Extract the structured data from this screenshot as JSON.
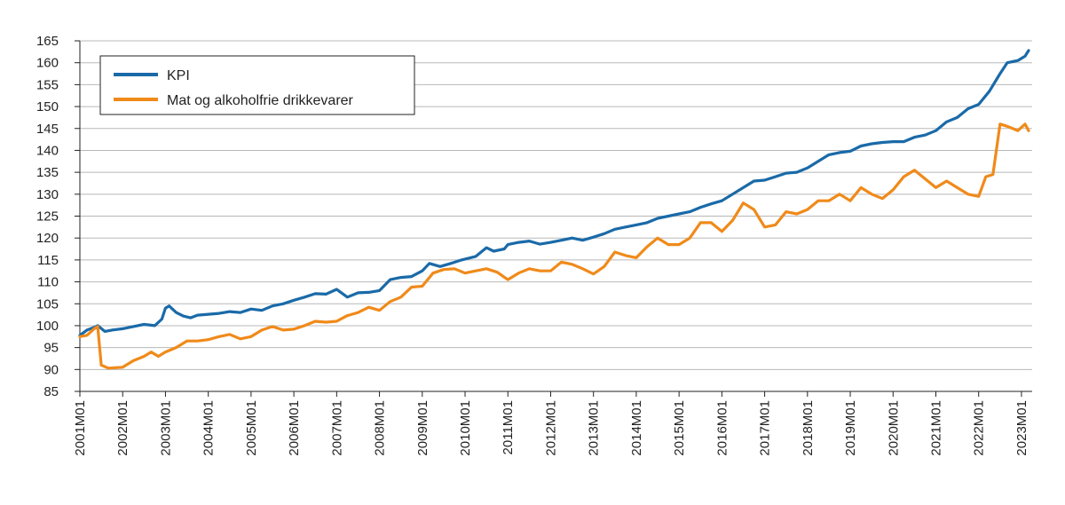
{
  "chart_data": {
    "type": "line",
    "title": "",
    "xlabel": "",
    "ylabel": "",
    "ylim": [
      85,
      165
    ],
    "y_ticks": [
      85,
      90,
      95,
      100,
      105,
      110,
      115,
      120,
      125,
      130,
      135,
      140,
      145,
      150,
      155,
      160,
      165
    ],
    "x_tick_labels": [
      "2001M01",
      "2002M01",
      "2003M01",
      "2004M01",
      "2005M01",
      "2006M01",
      "2007M01",
      "2008M01",
      "2009M01",
      "2010M01",
      "2011M01",
      "2012M01",
      "2013M01",
      "2014M01",
      "2015M01",
      "2016M01",
      "2017M01",
      "2018M01",
      "2019M01",
      "2020M01",
      "2021M01",
      "2022M01",
      "2023M01"
    ],
    "grid": "horizontal",
    "legend_position": "top-left",
    "series": [
      {
        "name": "KPI",
        "color": "#1a6aa8",
        "points": [
          [
            "2001M01",
            97.8
          ],
          [
            "2001M03",
            99.0
          ],
          [
            "2001M05",
            99.6
          ],
          [
            "2001M06",
            100.0
          ],
          [
            "2001M08",
            98.7
          ],
          [
            "2001M10",
            99.0
          ],
          [
            "2002M01",
            99.3
          ],
          [
            "2002M04",
            99.8
          ],
          [
            "2002M07",
            100.3
          ],
          [
            "2002M10",
            100.0
          ],
          [
            "2002M12",
            101.5
          ],
          [
            "2003M01",
            104.0
          ],
          [
            "2003M02",
            104.5
          ],
          [
            "2003M04",
            103.0
          ],
          [
            "2003M06",
            102.2
          ],
          [
            "2003M08",
            101.8
          ],
          [
            "2003M10",
            102.4
          ],
          [
            "2004M01",
            102.6
          ],
          [
            "2004M04",
            102.8
          ],
          [
            "2004M07",
            103.2
          ],
          [
            "2004M10",
            103.0
          ],
          [
            "2005M01",
            103.8
          ],
          [
            "2005M04",
            103.5
          ],
          [
            "2005M07",
            104.5
          ],
          [
            "2005M10",
            105.0
          ],
          [
            "2006M01",
            105.8
          ],
          [
            "2006M04",
            106.5
          ],
          [
            "2006M07",
            107.3
          ],
          [
            "2006M10",
            107.2
          ],
          [
            "2007M01",
            108.3
          ],
          [
            "2007M04",
            106.5
          ],
          [
            "2007M07",
            107.5
          ],
          [
            "2007M10",
            107.6
          ],
          [
            "2008M01",
            108.0
          ],
          [
            "2008M04",
            110.5
          ],
          [
            "2008M07",
            111.0
          ],
          [
            "2008M10",
            111.2
          ],
          [
            "2009M01",
            112.5
          ],
          [
            "2009M03",
            114.2
          ],
          [
            "2009M06",
            113.5
          ],
          [
            "2009M09",
            114.2
          ],
          [
            "2009M12",
            115.0
          ],
          [
            "2010M01",
            115.2
          ],
          [
            "2010M04",
            115.8
          ],
          [
            "2010M07",
            117.8
          ],
          [
            "2010M09",
            117.0
          ],
          [
            "2010M12",
            117.5
          ],
          [
            "2011M01",
            118.5
          ],
          [
            "2011M04",
            119.0
          ],
          [
            "2011M07",
            119.3
          ],
          [
            "2011M10",
            118.6
          ],
          [
            "2012M01",
            119.0
          ],
          [
            "2012M04",
            119.5
          ],
          [
            "2012M07",
            120.0
          ],
          [
            "2012M10",
            119.5
          ],
          [
            "2013M01",
            120.2
          ],
          [
            "2013M04",
            121.0
          ],
          [
            "2013M07",
            122.0
          ],
          [
            "2013M10",
            122.5
          ],
          [
            "2014M01",
            123.0
          ],
          [
            "2014M04",
            123.5
          ],
          [
            "2014M07",
            124.5
          ],
          [
            "2014M10",
            125.0
          ],
          [
            "2015M01",
            125.5
          ],
          [
            "2015M04",
            126.0
          ],
          [
            "2015M07",
            127.0
          ],
          [
            "2015M10",
            127.8
          ],
          [
            "2016M01",
            128.5
          ],
          [
            "2016M04",
            130.0
          ],
          [
            "2016M07",
            131.5
          ],
          [
            "2016M10",
            133.0
          ],
          [
            "2017M01",
            133.2
          ],
          [
            "2017M04",
            134.0
          ],
          [
            "2017M07",
            134.8
          ],
          [
            "2017M10",
            135.0
          ],
          [
            "2018M01",
            136.0
          ],
          [
            "2018M04",
            137.5
          ],
          [
            "2018M07",
            139.0
          ],
          [
            "2018M10",
            139.5
          ],
          [
            "2019M01",
            139.8
          ],
          [
            "2019M04",
            141.0
          ],
          [
            "2019M07",
            141.5
          ],
          [
            "2019M10",
            141.8
          ],
          [
            "2020M01",
            142.0
          ],
          [
            "2020M04",
            142.0
          ],
          [
            "2020M07",
            143.0
          ],
          [
            "2020M10",
            143.5
          ],
          [
            "2021M01",
            144.5
          ],
          [
            "2021M04",
            146.5
          ],
          [
            "2021M07",
            147.5
          ],
          [
            "2021M10",
            149.5
          ],
          [
            "2022M01",
            150.5
          ],
          [
            "2022M04",
            153.5
          ],
          [
            "2022M07",
            157.5
          ],
          [
            "2022M09",
            160.0
          ],
          [
            "2022M12",
            160.5
          ],
          [
            "2023M02",
            161.5
          ],
          [
            "2023M03",
            162.8
          ]
        ]
      },
      {
        "name": "Mat og alkoholfrie drikkevarer",
        "color": "#f08a1a",
        "points": [
          [
            "2001M01",
            97.5
          ],
          [
            "2001M03",
            97.8
          ],
          [
            "2001M05",
            99.3
          ],
          [
            "2001M06",
            99.8
          ],
          [
            "2001M07",
            91.0
          ],
          [
            "2001M09",
            90.3
          ],
          [
            "2002M01",
            90.5
          ],
          [
            "2002M04",
            92.0
          ],
          [
            "2002M07",
            93.0
          ],
          [
            "2002M09",
            94.0
          ],
          [
            "2002M11",
            93.0
          ],
          [
            "2003M01",
            94.0
          ],
          [
            "2003M04",
            95.0
          ],
          [
            "2003M07",
            96.5
          ],
          [
            "2003M10",
            96.5
          ],
          [
            "2004M01",
            96.8
          ],
          [
            "2004M04",
            97.5
          ],
          [
            "2004M07",
            98.0
          ],
          [
            "2004M10",
            97.0
          ],
          [
            "2005M01",
            97.5
          ],
          [
            "2005M04",
            99.0
          ],
          [
            "2005M07",
            99.8
          ],
          [
            "2005M10",
            99.0
          ],
          [
            "2006M01",
            99.2
          ],
          [
            "2006M04",
            100.0
          ],
          [
            "2006M07",
            101.0
          ],
          [
            "2006M10",
            100.8
          ],
          [
            "2007M01",
            101.0
          ],
          [
            "2007M04",
            102.3
          ],
          [
            "2007M07",
            103.0
          ],
          [
            "2007M10",
            104.2
          ],
          [
            "2008M01",
            103.5
          ],
          [
            "2008M04",
            105.5
          ],
          [
            "2008M07",
            106.5
          ],
          [
            "2008M10",
            108.8
          ],
          [
            "2009M01",
            109.0
          ],
          [
            "2009M04",
            112.0
          ],
          [
            "2009M07",
            112.8
          ],
          [
            "2009M10",
            113.0
          ],
          [
            "2010M01",
            112.0
          ],
          [
            "2010M04",
            112.5
          ],
          [
            "2010M07",
            113.0
          ],
          [
            "2010M10",
            112.2
          ],
          [
            "2011M01",
            110.5
          ],
          [
            "2011M04",
            112.0
          ],
          [
            "2011M07",
            113.0
          ],
          [
            "2011M10",
            112.5
          ],
          [
            "2012M01",
            112.5
          ],
          [
            "2012M04",
            114.5
          ],
          [
            "2012M07",
            114.0
          ],
          [
            "2012M10",
            113.0
          ],
          [
            "2013M01",
            111.8
          ],
          [
            "2013M04",
            113.5
          ],
          [
            "2013M07",
            116.8
          ],
          [
            "2013M10",
            116.0
          ],
          [
            "2014M01",
            115.5
          ],
          [
            "2014M04",
            118.0
          ],
          [
            "2014M07",
            120.0
          ],
          [
            "2014M10",
            118.5
          ],
          [
            "2015M01",
            118.5
          ],
          [
            "2015M04",
            120.0
          ],
          [
            "2015M07",
            123.5
          ],
          [
            "2015M10",
            123.5
          ],
          [
            "2016M01",
            121.5
          ],
          [
            "2016M04",
            124.0
          ],
          [
            "2016M07",
            128.0
          ],
          [
            "2016M10",
            126.5
          ],
          [
            "2017M01",
            122.5
          ],
          [
            "2017M04",
            123.0
          ],
          [
            "2017M07",
            126.0
          ],
          [
            "2017M10",
            125.5
          ],
          [
            "2018M01",
            126.5
          ],
          [
            "2018M04",
            128.5
          ],
          [
            "2018M07",
            128.5
          ],
          [
            "2018M10",
            130.0
          ],
          [
            "2019M01",
            128.5
          ],
          [
            "2019M04",
            131.5
          ],
          [
            "2019M07",
            130.0
          ],
          [
            "2019M10",
            129.0
          ],
          [
            "2020M01",
            131.0
          ],
          [
            "2020M04",
            134.0
          ],
          [
            "2020M07",
            135.5
          ],
          [
            "2020M10",
            133.5
          ],
          [
            "2021M01",
            131.5
          ],
          [
            "2021M04",
            133.0
          ],
          [
            "2021M07",
            131.5
          ],
          [
            "2021M10",
            130.0
          ],
          [
            "2022M01",
            129.5
          ],
          [
            "2022M03",
            134.0
          ],
          [
            "2022M05",
            134.5
          ],
          [
            "2022M07",
            146.0
          ],
          [
            "2022M09",
            145.5
          ],
          [
            "2022M12",
            144.5
          ],
          [
            "2023M02",
            146.0
          ],
          [
            "2023M03",
            144.5
          ]
        ]
      }
    ]
  }
}
